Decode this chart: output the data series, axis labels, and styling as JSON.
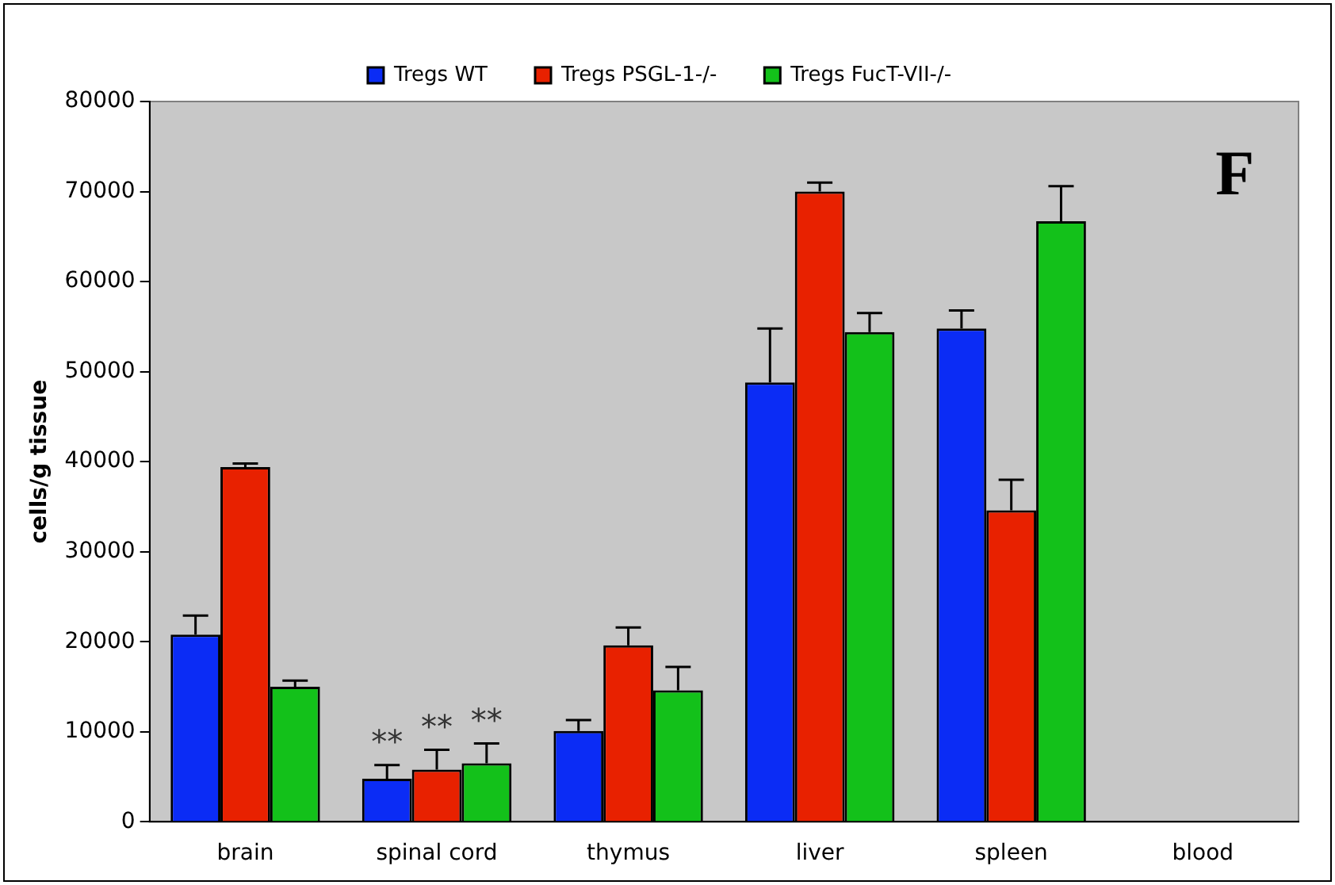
{
  "chart_data": {
    "type": "bar",
    "ylabel": "cells/g tissue",
    "categories": [
      "brain",
      "spinal cord",
      "thymus",
      "liver",
      "spleen",
      "blood"
    ],
    "series": [
      {
        "name": "Tregs WT",
        "color": "#0b2cf5",
        "values": [
          20800,
          4800,
          10100,
          48800,
          54800,
          0
        ],
        "errors": [
          [
            20800,
            22900
          ],
          [
            4800,
            6300
          ],
          [
            10100,
            11300
          ],
          [
            48800,
            54800
          ],
          [
            54800,
            56800
          ],
          null
        ]
      },
      {
        "name": "Tregs PSGL-1-/-",
        "color": "#e82100",
        "values": [
          39400,
          5800,
          19600,
          70000,
          34600,
          0
        ],
        "errors": [
          [
            39400,
            39800
          ],
          [
            5800,
            8000
          ],
          [
            19600,
            21600
          ],
          [
            70000,
            71000
          ],
          [
            34600,
            38000
          ],
          null
        ]
      },
      {
        "name": "Tregs FucT-VII-/-",
        "color": "#13c11a",
        "values": [
          15000,
          6500,
          14600,
          54400,
          66700,
          0
        ],
        "errors": [
          [
            15000,
            15700
          ],
          [
            6500,
            8700
          ],
          [
            14600,
            17200
          ],
          [
            54400,
            56500
          ],
          [
            66700,
            70600
          ],
          null
        ]
      }
    ],
    "ylim": [
      0,
      80000
    ],
    "yticks": [
      0,
      10000,
      20000,
      30000,
      40000,
      50000,
      60000,
      70000,
      80000
    ],
    "grid": false,
    "legend": "top",
    "annotations": [
      "F",
      {
        "text": "**",
        "x": "spinal cord",
        "y": 6300
      },
      {
        "text": "**",
        "x": "spinal cord",
        "y": 8000
      },
      {
        "text": "**",
        "x": "spinal cord",
        "y": 8700
      }
    ]
  }
}
